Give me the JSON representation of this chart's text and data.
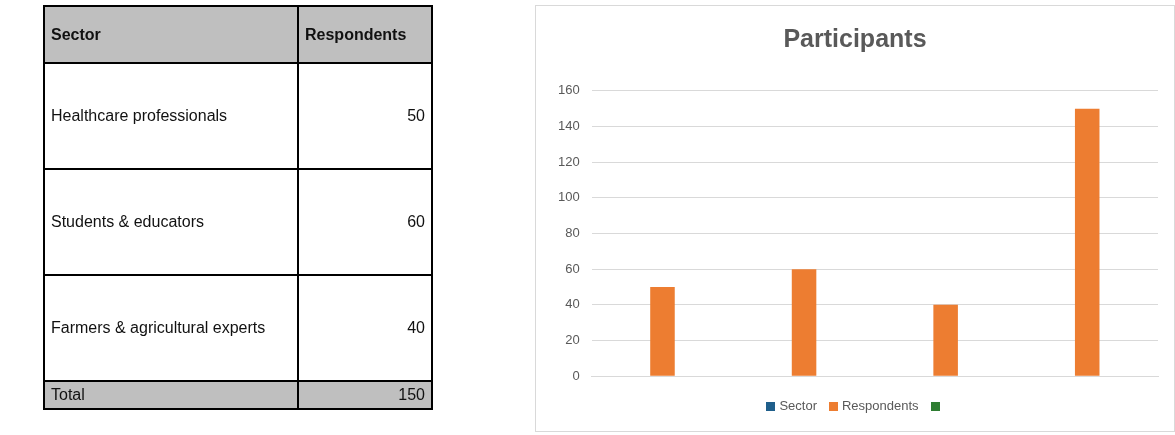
{
  "chart_data": [
    {
      "type": "other",
      "xlabel": "Sector",
      "ylabel": "Respondents",
      "categories": [
        "Healthcare professionals",
        "Students & educators",
        "Farmers & agricultural experts",
        "Total"
      ],
      "values": [
        50,
        60,
        40,
        150
      ],
      "data_labels": true
    },
    {
      "type": "bar",
      "title": "Participants",
      "categories": [
        null,
        null,
        null,
        null
      ],
      "series": [
        {
          "name": "Sector",
          "color": "#1f5f8b",
          "values": [
            null,
            null,
            null,
            null
          ]
        },
        {
          "name": "Respondents",
          "color": "#ed7d31",
          "values": [
            50,
            60,
            40,
            150
          ]
        },
        {
          "color": "#2e7d32",
          "values": [
            null,
            null,
            null,
            null
          ]
        }
      ],
      "ylim": [
        0,
        160
      ],
      "yticks": [
        0,
        20,
        40,
        60,
        80,
        100,
        120,
        140,
        160
      ],
      "grid": "y",
      "legend": "bottom",
      "tick_labels": "y"
    }
  ]
}
